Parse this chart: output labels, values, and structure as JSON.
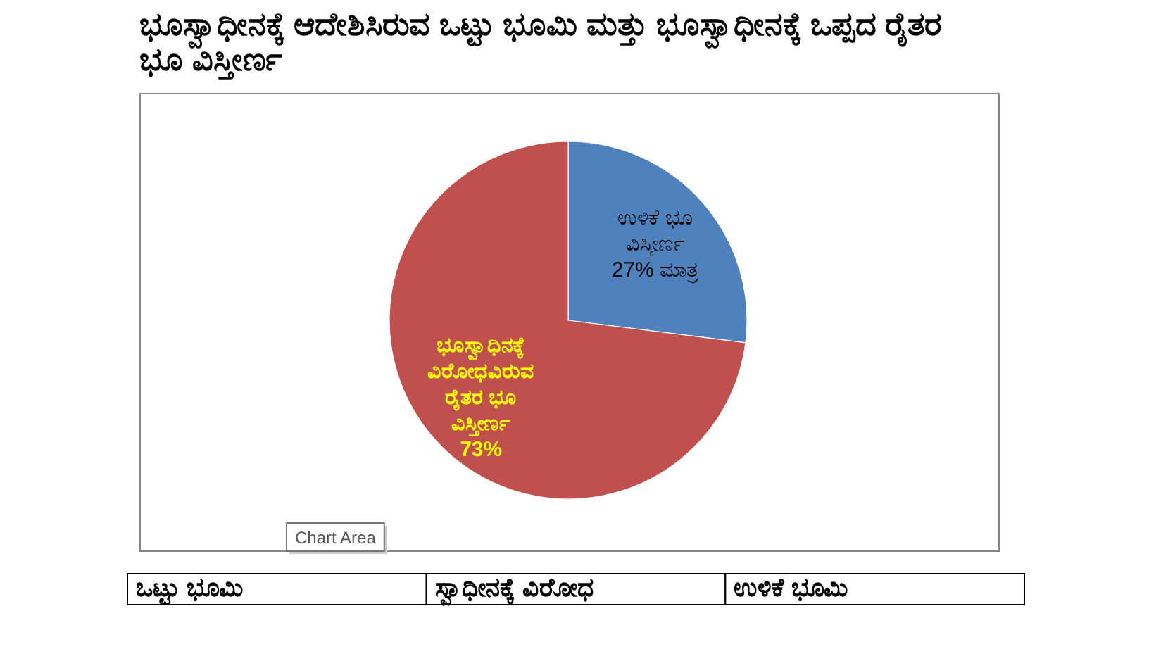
{
  "chart_data": {
    "type": "pie",
    "title": "ಭೂಸ್ವಾಧೀನಕ್ಕೆ ಆದೇಶಿಸಿರುವ ಒಟ್ಟು ಭೂಮಿ ಮತ್ತು ಭೂಸ್ವಾಧೀನಕ್ಕೆ ಒಪ್ಪದ ರೈತರ ಭೂ ವಿಸ್ತೀರ್ಣ",
    "categories": [
      "ಉಳಿಕೆ ಭೂ ವಿಸ್ತೀರ್ಣ",
      "ಭೂಸ್ವಾಧಿನಕ್ಕೆ ವಿರೋಧವಿರುವ ರೈತರ ಭೂ ವಿಸ್ತೀರ್ಣ"
    ],
    "values": [
      27,
      73
    ],
    "colors": [
      "#4f81bd",
      "#c0504d"
    ],
    "value_labels": [
      "27% ಮಾತ್ರ",
      "73%"
    ],
    "annotations": [
      "Chart Area",
      "ಒಟ್ಟು ಭೂಮಿ",
      "ಸ್ವಾಧೀನಕ್ಕೆ ವಿರೋಧ",
      "ಉಳಿಕೆ ಭೂಮಿ"
    ]
  }
}
